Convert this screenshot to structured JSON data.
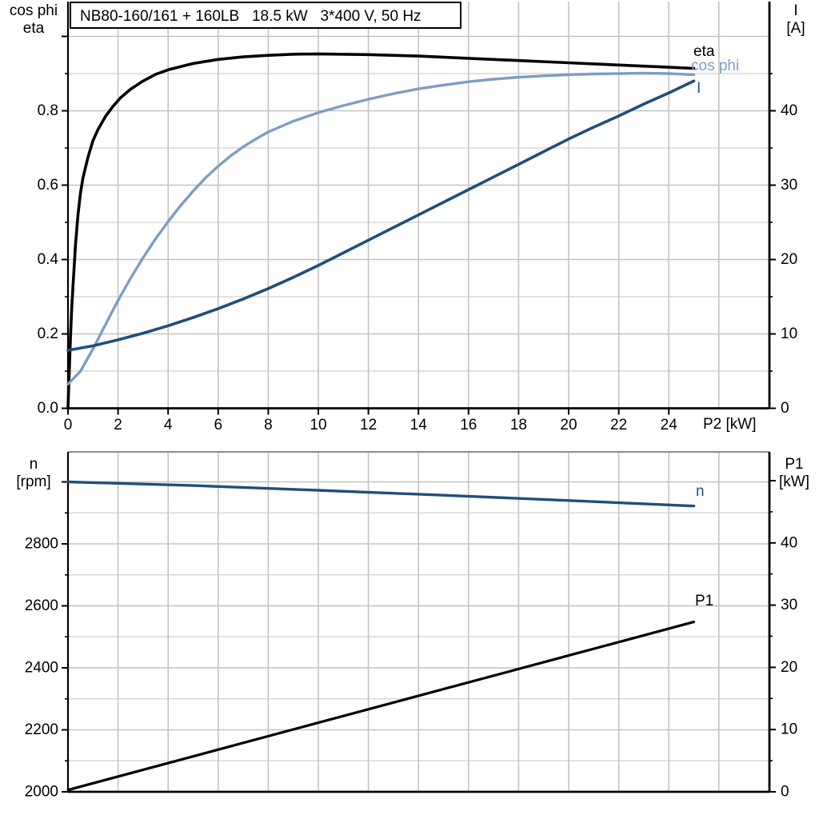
{
  "title_box": {
    "text": "NB80-160/161 + 160LB   18.5 kW   3*400 V, 50 Hz"
  },
  "colors": {
    "black": "#000000",
    "dark_blue": "#1f4e7b",
    "light_blue": "#7d9dc4",
    "grid_major": "#c3c3c3",
    "grid_minor": "#d9d9d9",
    "border_gray": "#8f8f8f",
    "background": "#ffffff"
  },
  "chart_data": [
    {
      "type": "line",
      "x_axis": {
        "unit_label": "P2 [kW]",
        "min": 0,
        "max": 28,
        "ticks": [
          {
            "v": 0,
            "label": "0"
          },
          {
            "v": 2,
            "label": "2"
          },
          {
            "v": 4,
            "label": "4"
          },
          {
            "v": 6,
            "label": "6"
          },
          {
            "v": 8,
            "label": "8"
          },
          {
            "v": 10,
            "label": "10"
          },
          {
            "v": 12,
            "label": "12"
          },
          {
            "v": 14,
            "label": "14"
          },
          {
            "v": 16,
            "label": "16"
          },
          {
            "v": 18,
            "label": "18"
          },
          {
            "v": 20,
            "label": "20"
          },
          {
            "v": 22,
            "label": "22"
          },
          {
            "v": 24,
            "label": "24"
          }
        ],
        "gridlines": [
          2,
          4,
          6,
          8,
          10,
          12,
          14,
          16,
          18,
          20,
          22,
          24,
          26
        ]
      },
      "left_axis": {
        "title_lines": [
          "cos phi",
          "eta"
        ],
        "min": 0,
        "max": 1.08,
        "ticks": [
          {
            "v": 0.0,
            "label": "0.0"
          },
          {
            "v": 0.2,
            "label": "0.2"
          },
          {
            "v": 0.4,
            "label": "0.4"
          },
          {
            "v": 0.6,
            "label": "0.6"
          },
          {
            "v": 0.8,
            "label": "0.8"
          },
          {
            "v": 1.0,
            "label": ""
          }
        ],
        "minor_ticks": [
          0.1,
          0.3,
          0.5,
          0.7,
          0.9
        ]
      },
      "right_axis": {
        "title_lines": [
          "I",
          "[A]"
        ],
        "min": 0,
        "max": 54,
        "ticks": [
          {
            "v": 0,
            "label": "0"
          },
          {
            "v": 10,
            "label": "10"
          },
          {
            "v": 20,
            "label": "20"
          },
          {
            "v": 30,
            "label": "30"
          },
          {
            "v": 40,
            "label": "40"
          }
        ],
        "minor_ticks": [
          5,
          15,
          25,
          35,
          45
        ]
      },
      "series": [
        {
          "label": "eta",
          "color": "black",
          "axis": "left",
          "width": 3.6,
          "points": [
            [
              0,
              0
            ],
            [
              0.05,
              0.1
            ],
            [
              0.1,
              0.19
            ],
            [
              0.15,
              0.27
            ],
            [
              0.2,
              0.33
            ],
            [
              0.3,
              0.44
            ],
            [
              0.4,
              0.52
            ],
            [
              0.5,
              0.58
            ],
            [
              0.6,
              0.62
            ],
            [
              0.8,
              0.675
            ],
            [
              1,
              0.72
            ],
            [
              1.2,
              0.75
            ],
            [
              1.5,
              0.785
            ],
            [
              1.8,
              0.812
            ],
            [
              2.1,
              0.835
            ],
            [
              2.5,
              0.858
            ],
            [
              3,
              0.88
            ],
            [
              3.5,
              0.898
            ],
            [
              4,
              0.91
            ],
            [
              5,
              0.927
            ],
            [
              6,
              0.938
            ],
            [
              7,
              0.945
            ],
            [
              8,
              0.949
            ],
            [
              9,
              0.952
            ],
            [
              10,
              0.953
            ],
            [
              12,
              0.951
            ],
            [
              14,
              0.947
            ],
            [
              16,
              0.941
            ],
            [
              18,
              0.935
            ],
            [
              20,
              0.929
            ],
            [
              22,
              0.923
            ],
            [
              24,
              0.917
            ],
            [
              25,
              0.914
            ]
          ]
        },
        {
          "label": "cos phi",
          "color": "light_blue",
          "axis": "left",
          "width": 3.4,
          "points": [
            [
              0,
              0.065
            ],
            [
              0.5,
              0.1
            ],
            [
              1,
              0.16
            ],
            [
              1.5,
              0.225
            ],
            [
              2,
              0.29
            ],
            [
              2.5,
              0.35
            ],
            [
              3,
              0.405
            ],
            [
              3.5,
              0.456
            ],
            [
              4,
              0.502
            ],
            [
              4.5,
              0.545
            ],
            [
              5,
              0.584
            ],
            [
              5.5,
              0.62
            ],
            [
              6,
              0.651
            ],
            [
              6.5,
              0.679
            ],
            [
              7,
              0.703
            ],
            [
              7.5,
              0.724
            ],
            [
              8,
              0.743
            ],
            [
              9,
              0.772
            ],
            [
              10,
              0.795
            ],
            [
              11,
              0.814
            ],
            [
              12,
              0.831
            ],
            [
              13,
              0.846
            ],
            [
              14,
              0.859
            ],
            [
              15,
              0.869
            ],
            [
              16,
              0.878
            ],
            [
              17,
              0.885
            ],
            [
              18,
              0.89
            ],
            [
              19,
              0.894
            ],
            [
              20,
              0.897
            ],
            [
              21,
              0.899
            ],
            [
              22,
              0.9
            ],
            [
              23,
              0.901
            ],
            [
              24,
              0.9
            ],
            [
              25,
              0.897
            ]
          ]
        },
        {
          "label": "I",
          "color": "dark_blue",
          "axis": "right",
          "width": 3.6,
          "points": [
            [
              0,
              7.8
            ],
            [
              1,
              8.4
            ],
            [
              2,
              9.2
            ],
            [
              3,
              10.1
            ],
            [
              4,
              11.1
            ],
            [
              5,
              12.2
            ],
            [
              6,
              13.4
            ],
            [
              7,
              14.7
            ],
            [
              8,
              16.1
            ],
            [
              9,
              17.6
            ],
            [
              10,
              19.2
            ],
            [
              11,
              20.9
            ],
            [
              12,
              22.6
            ],
            [
              13,
              24.3
            ],
            [
              14,
              26
            ],
            [
              15,
              27.7
            ],
            [
              16,
              29.4
            ],
            [
              17,
              31.1
            ],
            [
              18,
              32.8
            ],
            [
              19,
              34.5
            ],
            [
              20,
              36.2
            ],
            [
              21,
              37.8
            ],
            [
              22,
              39.3
            ],
            [
              23,
              40.9
            ],
            [
              24,
              42.4
            ],
            [
              25,
              44
            ]
          ]
        }
      ]
    },
    {
      "type": "line",
      "x_axis": {
        "unit_label": "",
        "min": 0,
        "max": 28,
        "ticks": [],
        "gridlines": [
          2,
          4,
          6,
          8,
          10,
          12,
          14,
          16,
          18,
          20,
          22,
          24,
          26
        ]
      },
      "left_axis": {
        "title_lines": [
          "n",
          "[rpm]"
        ],
        "min": 2000,
        "max": 3100,
        "ticks": [
          {
            "v": 2000,
            "label": "2000"
          },
          {
            "v": 2200,
            "label": "2200"
          },
          {
            "v": 2400,
            "label": "2400"
          },
          {
            "v": 2600,
            "label": "2600"
          },
          {
            "v": 2800,
            "label": "2800"
          },
          {
            "v": 3000,
            "label": ""
          }
        ],
        "minor_ticks": [
          2100,
          2300,
          2500,
          2700,
          2900
        ]
      },
      "right_axis": {
        "title_lines": [
          "P1",
          "[kW]"
        ],
        "min": 0,
        "max": 55,
        "ticks": [
          {
            "v": 0,
            "label": "0"
          },
          {
            "v": 10,
            "label": "10"
          },
          {
            "v": 20,
            "label": "20"
          },
          {
            "v": 30,
            "label": "30"
          },
          {
            "v": 40,
            "label": "40"
          },
          {
            "v": 50,
            "label": ""
          }
        ],
        "minor_ticks": [
          5,
          15,
          25,
          35,
          45
        ]
      },
      "series": [
        {
          "label": "n",
          "color": "dark_blue",
          "axis": "left",
          "width": 3.4,
          "points": [
            [
              0,
              3000
            ],
            [
              5,
              2988
            ],
            [
              10,
              2973
            ],
            [
              15,
              2957
            ],
            [
              20,
              2940
            ],
            [
              25,
              2922
            ]
          ]
        },
        {
          "label": "P1",
          "color": "black",
          "axis": "right",
          "width": 3.2,
          "points": [
            [
              0,
              0.3
            ],
            [
              5,
              5.7
            ],
            [
              10,
              11.1
            ],
            [
              15,
              16.5
            ],
            [
              20,
              21.9
            ],
            [
              25,
              27.3
            ]
          ]
        }
      ]
    }
  ]
}
